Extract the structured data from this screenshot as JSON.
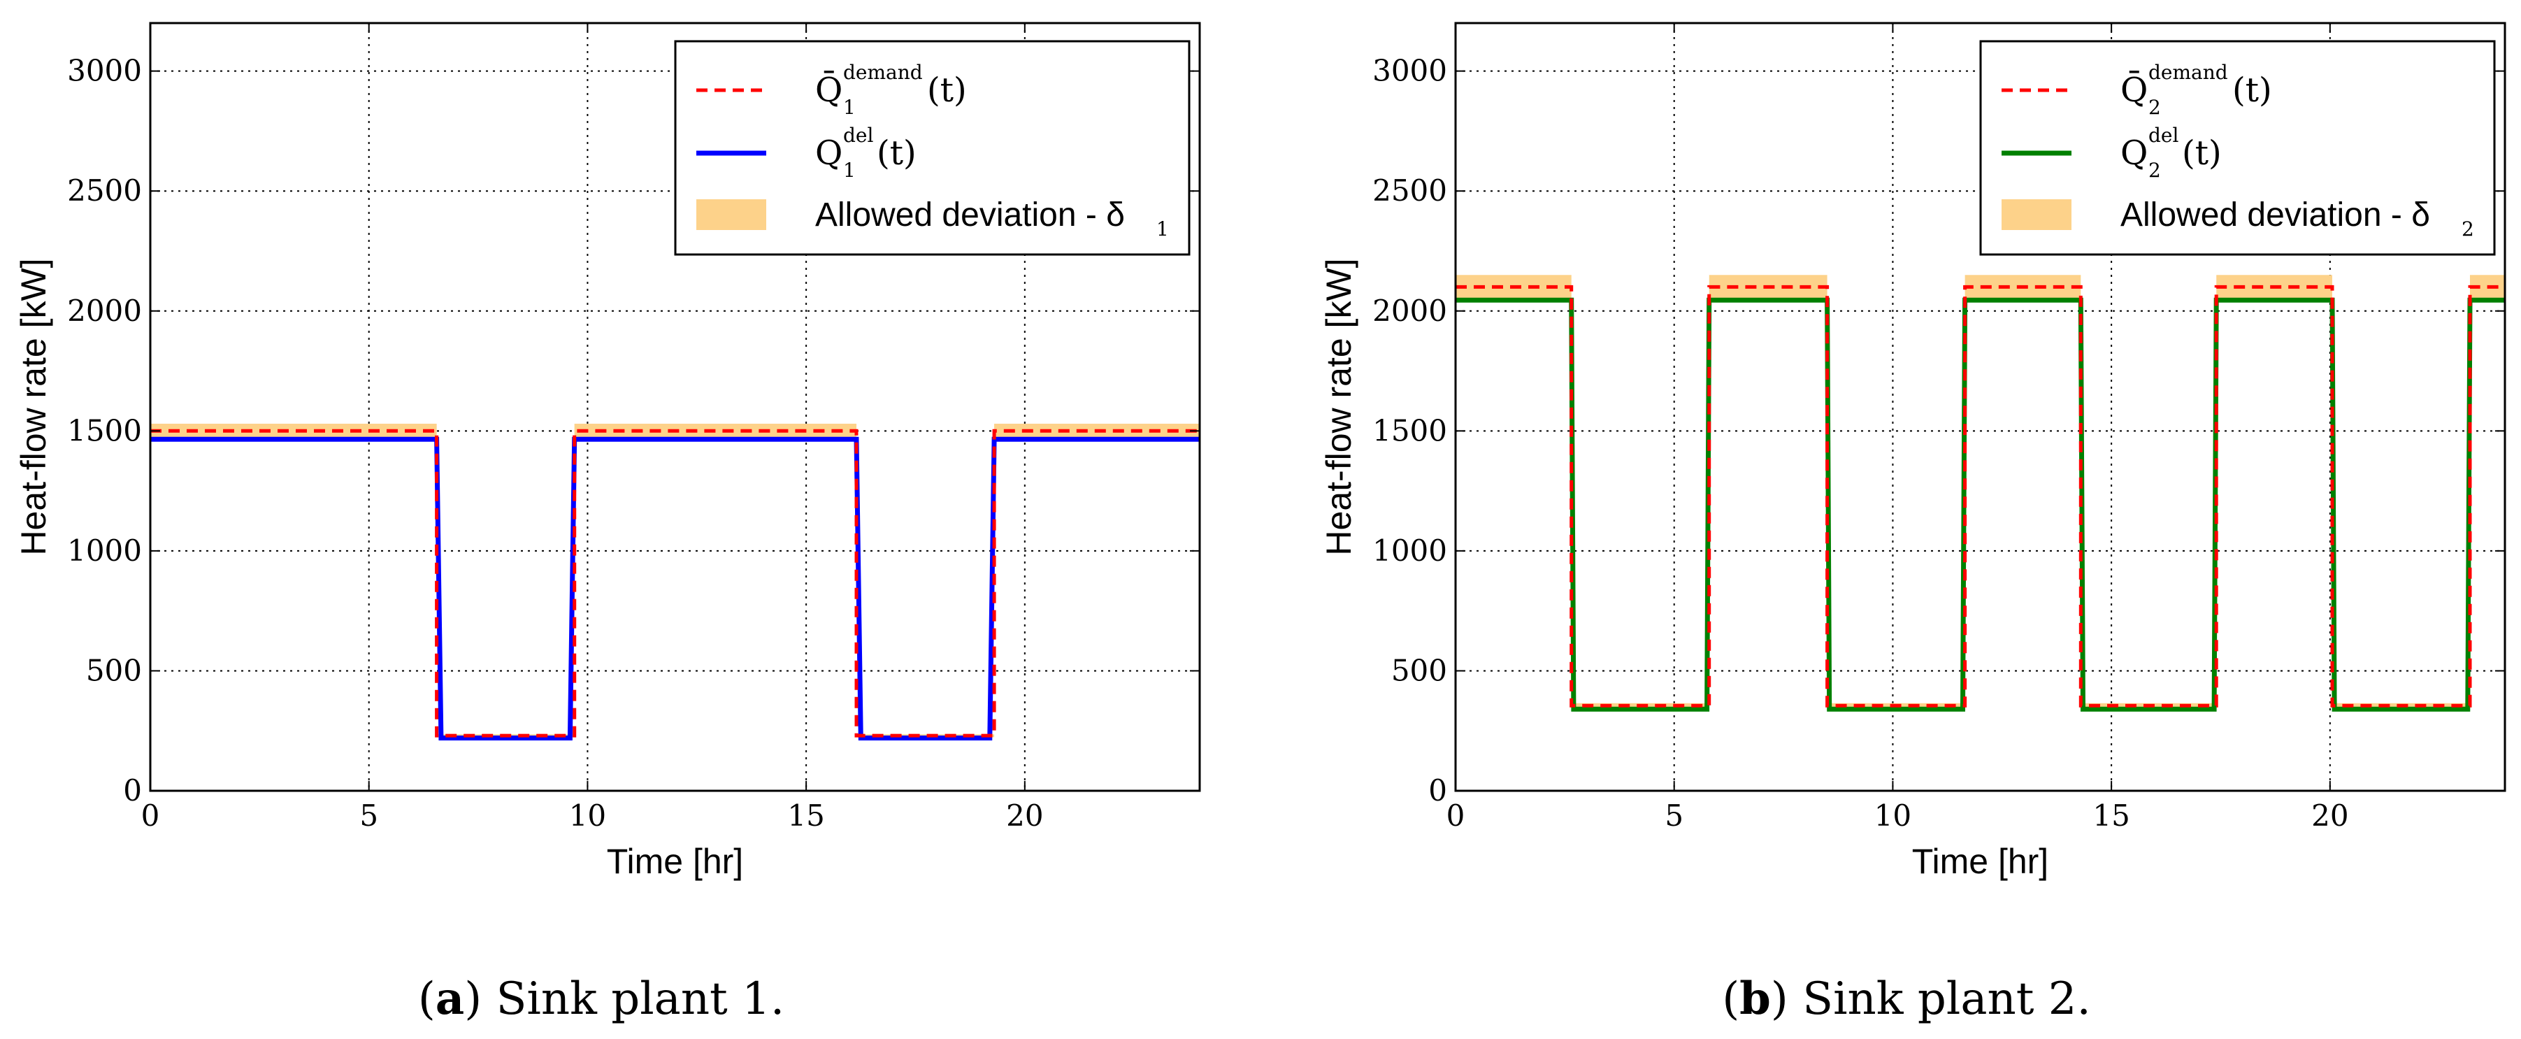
{
  "chart_data": [
    {
      "type": "line",
      "id": "a",
      "caption_letter": "a",
      "caption_text": "Sink plant 1.",
      "xlabel": "Time [hr]",
      "ylabel": "Heat-flow rate [kW]",
      "xlim": [
        0,
        24
      ],
      "ylim": [
        0,
        3200
      ],
      "xticks": [
        0,
        5,
        10,
        15,
        20
      ],
      "yticks": [
        0,
        500,
        1000,
        1500,
        2000,
        2500,
        3000
      ],
      "grid": true,
      "legend_position": "top-right",
      "legend": {
        "demand_label": "Q̄",
        "demand_index": "1",
        "demand_sup": "demand",
        "del_label": "Q",
        "del_index": "1",
        "del_sup": "del",
        "time_arg": "(t)",
        "deviation_label": "Allowed deviation - δ",
        "deviation_index": "1"
      },
      "colors": {
        "demand": "#ff0000",
        "delivered": "#0000ff",
        "band": "#fdd28a"
      },
      "series": [
        {
          "name": "demand",
          "x": [
            0,
            6.55,
            6.55,
            9.7,
            9.7,
            16.15,
            16.15,
            19.3,
            19.3,
            24
          ],
          "y": [
            1500,
            1500,
            230,
            230,
            1500,
            1500,
            230,
            230,
            1500,
            1500
          ]
        },
        {
          "name": "delivered",
          "x": [
            0,
            6.55,
            6.65,
            9.6,
            9.7,
            16.15,
            16.25,
            19.2,
            19.3,
            24
          ],
          "y": [
            1465,
            1465,
            220,
            220,
            1465,
            1465,
            220,
            220,
            1465,
            1465
          ]
        }
      ],
      "deviation_bands": [
        {
          "x0": 0,
          "x1": 6.55,
          "ylow": 1470,
          "yhigh": 1530
        },
        {
          "x0": 6.55,
          "x1": 9.7,
          "ylow": 225,
          "yhigh": 235
        },
        {
          "x0": 9.7,
          "x1": 16.15,
          "ylow": 1470,
          "yhigh": 1530
        },
        {
          "x0": 16.15,
          "x1": 19.3,
          "ylow": 225,
          "yhigh": 235
        },
        {
          "x0": 19.3,
          "x1": 24,
          "ylow": 1470,
          "yhigh": 1530
        }
      ]
    },
    {
      "type": "line",
      "id": "b",
      "caption_letter": "b",
      "caption_text": "Sink plant 2.",
      "xlabel": "Time [hr]",
      "ylabel": "Heat-flow rate [kW]",
      "xlim": [
        0,
        24
      ],
      "ylim": [
        0,
        3200
      ],
      "xticks": [
        0,
        5,
        10,
        15,
        20
      ],
      "yticks": [
        0,
        500,
        1000,
        1500,
        2000,
        2500,
        3000
      ],
      "grid": true,
      "legend_position": "top-right",
      "legend": {
        "demand_label": "Q̄",
        "demand_index": "2",
        "demand_sup": "demand",
        "del_label": "Q",
        "del_index": "2",
        "del_sup": "del",
        "time_arg": "(t)",
        "deviation_label": "Allowed deviation - δ",
        "deviation_index": "2"
      },
      "colors": {
        "demand": "#ff0000",
        "delivered": "#008000",
        "band": "#fdd28a"
      },
      "series": [
        {
          "name": "demand",
          "x": [
            0,
            2.65,
            2.65,
            5.8,
            5.8,
            8.5,
            8.5,
            11.65,
            11.65,
            14.3,
            14.3,
            17.4,
            17.4,
            20.05,
            20.05,
            23.2,
            23.2,
            24
          ],
          "y": [
            2100,
            2100,
            355,
            355,
            2100,
            2100,
            355,
            355,
            2100,
            2100,
            355,
            355,
            2100,
            2100,
            355,
            355,
            2100,
            2100
          ]
        },
        {
          "name": "delivered",
          "x": [
            0,
            2.65,
            2.7,
            5.75,
            5.8,
            8.5,
            8.55,
            11.6,
            11.65,
            14.3,
            14.35,
            17.35,
            17.4,
            20.05,
            20.1,
            23.15,
            23.2,
            24
          ],
          "y": [
            2045,
            2045,
            340,
            340,
            2045,
            2045,
            340,
            340,
            2045,
            2045,
            340,
            340,
            2045,
            2045,
            340,
            340,
            2045,
            2045
          ]
        }
      ],
      "deviation_bands": [
        {
          "x0": 0,
          "x1": 2.65,
          "ylow": 2050,
          "yhigh": 2150
        },
        {
          "x0": 2.65,
          "x1": 5.8,
          "ylow": 345,
          "yhigh": 365
        },
        {
          "x0": 5.8,
          "x1": 8.5,
          "ylow": 2050,
          "yhigh": 2150
        },
        {
          "x0": 8.5,
          "x1": 11.65,
          "ylow": 345,
          "yhigh": 365
        },
        {
          "x0": 11.65,
          "x1": 14.3,
          "ylow": 2050,
          "yhigh": 2150
        },
        {
          "x0": 14.3,
          "x1": 17.4,
          "ylow": 345,
          "yhigh": 365
        },
        {
          "x0": 17.4,
          "x1": 20.05,
          "ylow": 2050,
          "yhigh": 2150
        },
        {
          "x0": 20.05,
          "x1": 23.2,
          "ylow": 345,
          "yhigh": 365
        },
        {
          "x0": 23.2,
          "x1": 24,
          "ylow": 2050,
          "yhigh": 2150
        }
      ]
    }
  ]
}
